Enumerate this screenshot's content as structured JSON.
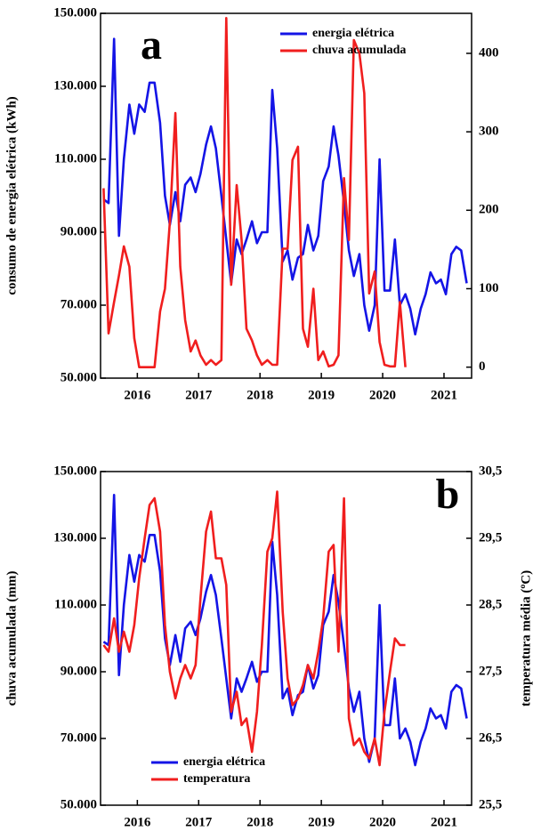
{
  "chart_data": [
    {
      "type": "line",
      "panel_label": "a",
      "ylabel": "consumo de energia elétrica (kWh)",
      "legend": "upper right",
      "x": [
        2015.45,
        2015.53,
        2015.62,
        2015.7,
        2015.78,
        2015.87,
        2015.95,
        2016.03,
        2016.12,
        2016.2,
        2016.28,
        2016.37,
        2016.45,
        2016.53,
        2016.62,
        2016.7,
        2016.78,
        2016.87,
        2016.95,
        2017.03,
        2017.12,
        2017.2,
        2017.28,
        2017.37,
        2017.45,
        2017.53,
        2017.62,
        2017.7,
        2017.78,
        2017.87,
        2017.95,
        2018.03,
        2018.12,
        2018.2,
        2018.28,
        2018.37,
        2018.45,
        2018.53,
        2018.62,
        2018.7,
        2018.78,
        2018.87,
        2018.95,
        2019.03,
        2019.12,
        2019.2,
        2019.28,
        2019.37,
        2019.45,
        2019.53,
        2019.62,
        2019.7,
        2019.78,
        2019.87,
        2019.95,
        2020.03,
        2020.12,
        2020.2,
        2020.28,
        2020.37,
        2020.45,
        2020.53,
        2020.62,
        2020.7,
        2020.78,
        2020.87,
        2020.95,
        2021.03,
        2021.12,
        2021.2,
        2021.28,
        2021.37
      ],
      "series": [
        {
          "name": "energia elétrica",
          "color": "#1414e6",
          "values": [
            99000,
            98000,
            143000,
            89000,
            110000,
            125000,
            117000,
            125000,
            123000,
            131000,
            131000,
            120000,
            100000,
            92000,
            101000,
            93000,
            103000,
            105000,
            101000,
            106000,
            114000,
            119000,
            113000,
            100000,
            88000,
            76000,
            88000,
            84000,
            88000,
            93000,
            87000,
            90000,
            90000,
            129000,
            113000,
            82000,
            85000,
            77000,
            83000,
            84000,
            92000,
            85000,
            89000,
            104000,
            108000,
            119000,
            111000,
            98000,
            85000,
            78000,
            84000,
            70000,
            63000,
            70000,
            110000,
            74000,
            74000,
            88000,
            70000,
            73000,
            69000,
            62000,
            69000,
            73000,
            79000,
            76000,
            77000,
            73000,
            84000,
            86000,
            85000,
            76000
          ]
        },
        {
          "name": "chuva acumulada",
          "color": "#f01e1e",
          "axis": "y2",
          "values": [
            228,
            43,
            83,
            117,
            154,
            128,
            37,
            0,
            0,
            0,
            0,
            71,
            100,
            185,
            324,
            128,
            60,
            20,
            34,
            15,
            3,
            9,
            3,
            9,
            445,
            105,
            232,
            162,
            49,
            34,
            15,
            3,
            9,
            3,
            3,
            151,
            151,
            264,
            281,
            49,
            26,
            100,
            9,
            20,
            1,
            3,
            15,
            241,
            162,
            417,
            400,
            349,
            94,
            122,
            32,
            3,
            1,
            1,
            83,
            0,
            null,
            null,
            null,
            null,
            null,
            null,
            null,
            null,
            null,
            null,
            null,
            null
          ]
        }
      ],
      "xlim": [
        2015.4,
        2021.45
      ],
      "xticks": [
        2016,
        2017,
        2018,
        2019,
        2020,
        2021
      ],
      "ylim": [
        50000,
        150000
      ],
      "yticks": [
        {
          "value": 50000,
          "label": "50.000"
        },
        {
          "value": 70000,
          "label": "70.000"
        },
        {
          "value": 90000,
          "label": "90.000"
        },
        {
          "value": 110000,
          "label": "110.000"
        },
        {
          "value": 130000,
          "label": "130.000"
        },
        {
          "value": 150000,
          "label": "150.000"
        }
      ],
      "y2lim": [
        -14,
        451
      ],
      "y2ticks": [
        0,
        100,
        200,
        300,
        400
      ]
    },
    {
      "type": "line",
      "panel_label": "b",
      "ylabel": "chuva acumulada (mm)",
      "y2label": "temperatura média (ºC)",
      "legend": "lower left",
      "x": [
        2015.45,
        2015.53,
        2015.62,
        2015.7,
        2015.78,
        2015.87,
        2015.95,
        2016.03,
        2016.12,
        2016.2,
        2016.28,
        2016.37,
        2016.45,
        2016.53,
        2016.62,
        2016.7,
        2016.78,
        2016.87,
        2016.95,
        2017.03,
        2017.12,
        2017.2,
        2017.28,
        2017.37,
        2017.45,
        2017.53,
        2017.62,
        2017.7,
        2017.78,
        2017.87,
        2017.95,
        2018.03,
        2018.12,
        2018.2,
        2018.28,
        2018.37,
        2018.45,
        2018.53,
        2018.62,
        2018.7,
        2018.78,
        2018.87,
        2018.95,
        2019.03,
        2019.12,
        2019.2,
        2019.28,
        2019.37,
        2019.45,
        2019.53,
        2019.62,
        2019.7,
        2019.78,
        2019.87,
        2019.95,
        2020.03,
        2020.12,
        2020.2,
        2020.28,
        2020.37,
        2020.45,
        2020.53,
        2020.62,
        2020.7,
        2020.78,
        2020.87,
        2020.95,
        2021.03,
        2021.12,
        2021.2,
        2021.28,
        2021.37
      ],
      "series": [
        {
          "name": "energia elétrica",
          "color": "#1414e6",
          "values": [
            99000,
            98000,
            143000,
            89000,
            110000,
            125000,
            117000,
            125000,
            123000,
            131000,
            131000,
            120000,
            100000,
            92000,
            101000,
            93000,
            103000,
            105000,
            101000,
            106000,
            114000,
            119000,
            113000,
            100000,
            88000,
            76000,
            88000,
            84000,
            88000,
            93000,
            87000,
            90000,
            90000,
            129000,
            113000,
            82000,
            85000,
            77000,
            83000,
            84000,
            92000,
            85000,
            89000,
            104000,
            108000,
            119000,
            111000,
            98000,
            85000,
            78000,
            84000,
            70000,
            63000,
            70000,
            110000,
            74000,
            74000,
            88000,
            70000,
            73000,
            69000,
            62000,
            69000,
            73000,
            79000,
            76000,
            77000,
            73000,
            84000,
            86000,
            85000,
            76000
          ]
        },
        {
          "name": "temperatura",
          "color": "#f01e1e",
          "axis": "y2",
          "values": [
            27.9,
            27.8,
            28.3,
            27.8,
            28.1,
            27.8,
            28.2,
            28.9,
            29.5,
            30.0,
            30.1,
            29.6,
            28.2,
            27.5,
            27.1,
            27.4,
            27.6,
            27.4,
            27.6,
            28.6,
            29.6,
            29.9,
            29.2,
            29.2,
            28.8,
            26.9,
            27.2,
            26.7,
            26.8,
            26.3,
            26.9,
            27.9,
            29.3,
            29.5,
            30.2,
            28.4,
            27.4,
            27.0,
            27.1,
            27.3,
            27.6,
            27.4,
            27.8,
            28.3,
            29.3,
            29.4,
            27.8,
            30.1,
            26.8,
            26.4,
            26.5,
            26.3,
            26.2,
            26.5,
            26.1,
            26.9,
            27.5,
            28.0,
            27.9,
            27.9,
            null,
            null,
            null,
            null,
            null,
            null,
            null,
            null,
            null,
            null,
            null,
            null
          ]
        }
      ],
      "xlim": [
        2015.4,
        2021.45
      ],
      "xticks": [
        2016,
        2017,
        2018,
        2019,
        2020,
        2021
      ],
      "ylim": [
        50000,
        150000
      ],
      "yticks": [
        {
          "value": 50000,
          "label": "50.000"
        },
        {
          "value": 70000,
          "label": "70.000"
        },
        {
          "value": 90000,
          "label": "90.000"
        },
        {
          "value": 110000,
          "label": "110.000"
        },
        {
          "value": 130000,
          "label": "130.000"
        },
        {
          "value": 150000,
          "label": "150.000"
        }
      ],
      "y2lim": [
        25.5,
        30.5
      ],
      "y2ticks": [
        {
          "value": 25.5,
          "label": "25,5"
        },
        {
          "value": 26.5,
          "label": "26,5"
        },
        {
          "value": 27.5,
          "label": "27,5"
        },
        {
          "value": 28.5,
          "label": "28,5"
        },
        {
          "value": 29.5,
          "label": "29,5"
        },
        {
          "value": 30.5,
          "label": "30,5"
        }
      ]
    }
  ]
}
